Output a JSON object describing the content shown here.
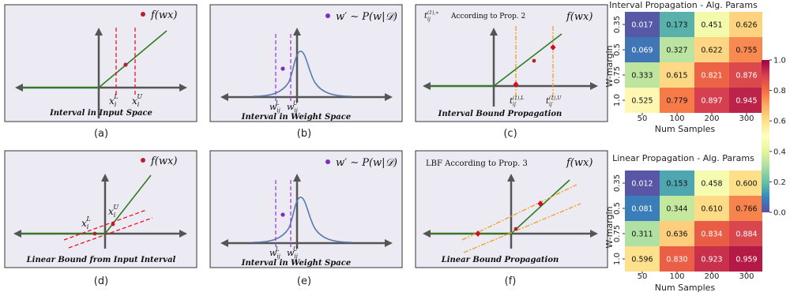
{
  "panels": {
    "a": {
      "caption": "(a)",
      "box_label": "Interval in Input Space",
      "legend": "f(wx)",
      "lower": "x",
      "lower_sub": "i",
      "lower_sup": "L",
      "upper": "x",
      "upper_sub": "i",
      "upper_sup": "U"
    },
    "b": {
      "caption": "(b)",
      "box_label": "Interval in Weight Space",
      "legend": "w′ ∼ P(w|𝒟)",
      "lower": "w",
      "lower_sub": "ij",
      "lower_sup": "L",
      "upper": "w",
      "upper_sub": "ij",
      "upper_sup": "U"
    },
    "c": {
      "caption": "(c)",
      "box_label": "Interval Bound Propagation",
      "note_t": "t",
      "note_t_sub": "ij",
      "note_t_sup": "(1),∗",
      "note": "According to Prop. 2",
      "func": "f(wx)",
      "lower": "t",
      "lower_sub": "ij",
      "lower_sup": "(1),L",
      "upper": "t",
      "upper_sub": "ij",
      "upper_sup": "(1),U"
    },
    "d": {
      "caption": "(d)",
      "box_label": "Linear Bound from Input Interval",
      "legend": "f(wx)",
      "lower": "x",
      "lower_sub": "i",
      "lower_sup": "L",
      "upper": "x",
      "upper_sub": "i",
      "upper_sup": "U"
    },
    "e": {
      "caption": "(e)",
      "box_label": "Interval in Weight Space",
      "legend": "w′ ∼ P(w|𝒟)",
      "lower": "w",
      "lower_sub": "ij",
      "lower_sup": "L",
      "upper": "w",
      "upper_sub": "ij",
      "upper_sup": "U"
    },
    "f": {
      "caption": "(f)",
      "box_label": "Linear Bound Propagation",
      "note": "LBF According to Prop. 3",
      "func": "f(wx)"
    }
  },
  "colors": {
    "box_fill": "#ecebf4",
    "axis": "#555555",
    "relu": "#2e7d1e",
    "red_dash": "#e8141c",
    "purple_dash": "#a23de0",
    "gaussian": "#5a7ab0",
    "orange_dash": "#f0a020",
    "point_red": "#b22230",
    "point_purple": "#7b2fbe"
  },
  "chart_data": [
    {
      "type": "heatmap",
      "title": "Interval Propagation - Alg. Params",
      "xlabel": "Num Samples",
      "ylabel": "W-margin",
      "x": [
        "50",
        "100",
        "200",
        "300"
      ],
      "y": [
        "0.35",
        "0.5",
        "0.75",
        "1.0"
      ],
      "values": [
        [
          0.017,
          0.173,
          0.451,
          0.626
        ],
        [
          0.069,
          0.327,
          0.622,
          0.755
        ],
        [
          0.333,
          0.615,
          0.821,
          0.876
        ],
        [
          0.525,
          0.779,
          0.897,
          0.945
        ]
      ],
      "vmin": 0.0,
      "vmax": 1.0,
      "colormap": "Spectral_r"
    },
    {
      "type": "heatmap",
      "title": "Linear Propagation - Alg. Params",
      "xlabel": "Num Samples",
      "ylabel": "W-margin",
      "x": [
        "50",
        "100",
        "200",
        "300"
      ],
      "y": [
        "0.35",
        "0.5",
        "0.75",
        "1.0"
      ],
      "values": [
        [
          0.012,
          0.153,
          0.458,
          0.6
        ],
        [
          0.081,
          0.344,
          0.61,
          0.766
        ],
        [
          0.311,
          0.636,
          0.834,
          0.884
        ],
        [
          0.596,
          0.83,
          0.923,
          0.959
        ]
      ],
      "vmin": 0.0,
      "vmax": 1.0,
      "colormap": "Spectral_r"
    }
  ],
  "colorbar": {
    "ticks": [
      "1.0",
      "0.8",
      "0.6",
      "0.4",
      "0.2",
      "0.0"
    ]
  }
}
